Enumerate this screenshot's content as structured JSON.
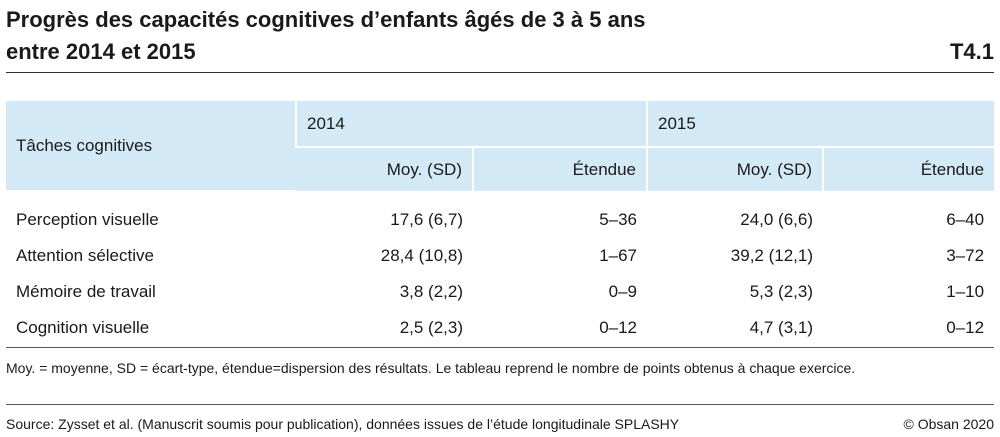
{
  "title": {
    "line1": "Progrès des capacités cognitives d’enfants âgés de 3 à 5 ans",
    "line2": "entre 2014 et 2015",
    "code": "T4.1"
  },
  "table": {
    "header": {
      "task_label": "Tâches cognitives",
      "year_2014": "2014",
      "year_2015": "2015",
      "mean_label_2014": "Moy. (SD)",
      "range_label_2014": "Étendue",
      "mean_label_2015": "Moy. (SD)",
      "range_label_2015": "Étendue"
    },
    "rows": [
      {
        "task": "Perception visuelle",
        "mean_2014": "17,6 (6,7)",
        "range_2014": "5–36",
        "mean_2015": "24,0 (6,6)",
        "range_2015": "6–40"
      },
      {
        "task": "Attention sélective",
        "mean_2014": "28,4 (10,8)",
        "range_2014": "1–67",
        "mean_2015": "39,2 (12,1)",
        "range_2015": "3–72"
      },
      {
        "task": "Mémoire de travail",
        "mean_2014": "3,8 (2,2)",
        "range_2014": "0–9",
        "mean_2015": "5,3 (2,3)",
        "range_2015": "1–10"
      },
      {
        "task": "Cognition visuelle",
        "mean_2014": "2,5 (2,3)",
        "range_2014": "0–12",
        "mean_2015": "4,7 (3,1)",
        "range_2015": "0–12"
      }
    ]
  },
  "footnote": "Moy. = moyenne, SD = écart-type, étendue=dispersion des résultats. Le tableau reprend le nombre de points obtenus à chaque exercice.",
  "source": "Source: Zysset et al. (Manuscrit soumis pour publication), données issues de l’étude longitudinale SPLASHY",
  "copyright": "© Obsan 2020",
  "colors": {
    "header_background": "#d4e9f6",
    "text": "#1a1a1a"
  }
}
